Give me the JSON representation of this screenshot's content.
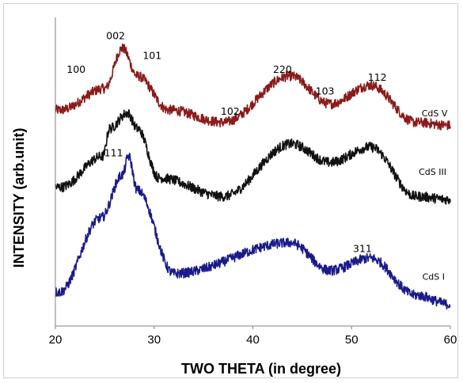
{
  "chart_data": {
    "type": "line",
    "title": "",
    "xlabel": "TWO THETA (in degree)",
    "ylabel": "INTENSITY (arb.unit)",
    "xlim": [
      20,
      60
    ],
    "ylim": [
      0,
      100
    ],
    "xticks": [
      "20",
      "30",
      "40",
      "50",
      "60"
    ],
    "grid": false,
    "series": [
      {
        "name": "CdS V",
        "color": "#8b1a1a",
        "peaks": [
          [
            20.5,
            70
          ],
          [
            25.0,
            77
          ],
          [
            26.8,
            90
          ],
          [
            28.3,
            81
          ],
          [
            31.5,
            70
          ],
          [
            37.0,
            66
          ],
          [
            43.8,
            81
          ],
          [
            47.8,
            72
          ],
          [
            51.9,
            78
          ],
          [
            56.5,
            66
          ],
          [
            60.0,
            65
          ]
        ]
      },
      {
        "name": "CdS III",
        "color": "#111111",
        "peaks": [
          [
            20.5,
            45
          ],
          [
            24.8,
            55
          ],
          [
            25.5,
            64
          ],
          [
            27.3,
            69
          ],
          [
            28.3,
            64
          ],
          [
            30.5,
            48
          ],
          [
            37.0,
            42
          ],
          [
            43.9,
            59
          ],
          [
            47.8,
            53
          ],
          [
            51.9,
            58
          ],
          [
            56.5,
            42
          ],
          [
            60.0,
            41
          ]
        ]
      },
      {
        "name": "CdS I",
        "color": "#1a1a8c",
        "peaks": [
          [
            20.4,
            11
          ],
          [
            24.6,
            35
          ],
          [
            26.8,
            49
          ],
          [
            27.4,
            55
          ],
          [
            28.3,
            44
          ],
          [
            32.0,
            17
          ],
          [
            43.8,
            27
          ],
          [
            47.8,
            18
          ],
          [
            51.9,
            22
          ],
          [
            56.5,
            10
          ],
          [
            60.0,
            7
          ]
        ]
      }
    ],
    "annotations": [
      {
        "text": "100",
        "x": 22.1,
        "y": 82
      },
      {
        "text": "002",
        "x": 26.1,
        "y": 93
      },
      {
        "text": "101",
        "x": 29.8,
        "y": 86.5
      },
      {
        "text": "102",
        "x": 37.7,
        "y": 68.5
      },
      {
        "text": "220",
        "x": 43.0,
        "y": 82
      },
      {
        "text": "103",
        "x": 47.3,
        "y": 75
      },
      {
        "text": "112",
        "x": 52.6,
        "y": 79.5
      },
      {
        "text": "111",
        "x": 25.9,
        "y": 55
      },
      {
        "text": "311",
        "x": 51.1,
        "y": 24
      }
    ],
    "series_labels": [
      {
        "text": "CdS V",
        "x": 58.4,
        "y": 68
      },
      {
        "text": "CdS III",
        "x": 58.2,
        "y": 49
      },
      {
        "text": "CdS I",
        "x": 58.3,
        "y": 15
      }
    ]
  }
}
